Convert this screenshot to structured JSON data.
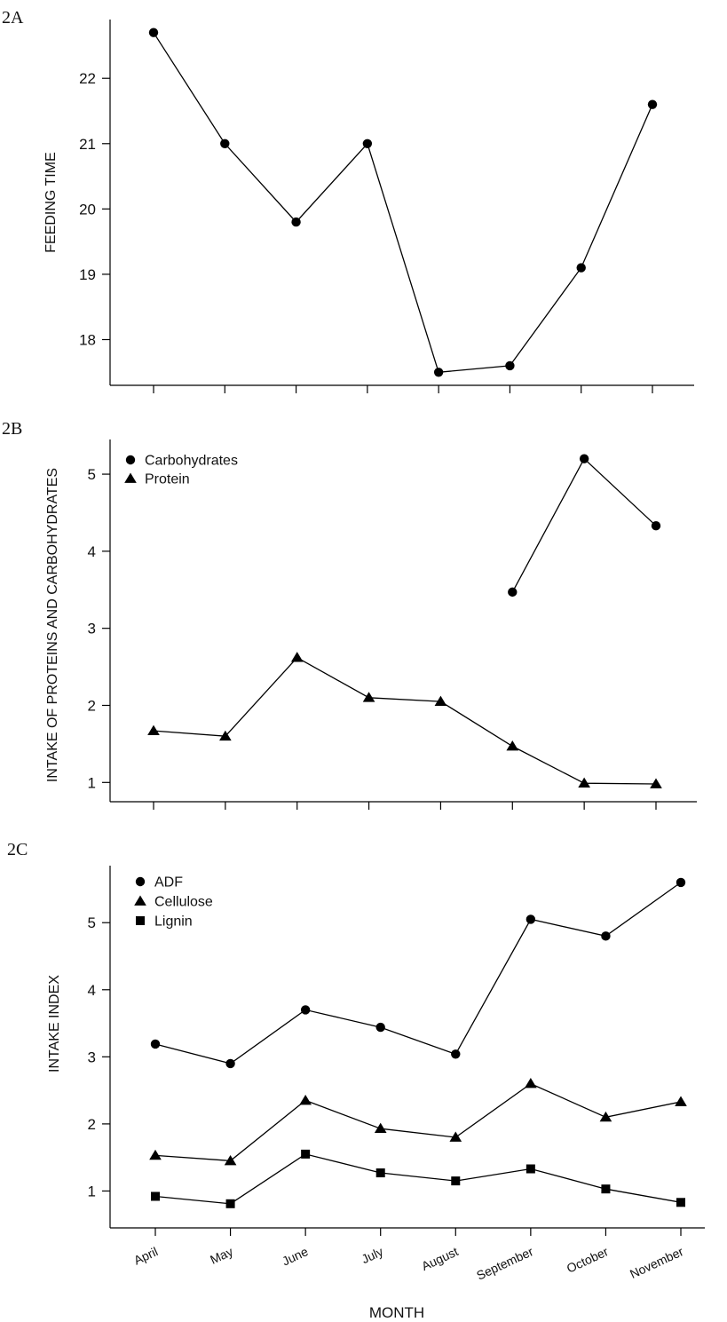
{
  "chart_data": [
    {
      "panel": "2A",
      "type": "line",
      "ylabel": "FEEDING  TIME",
      "ylim": [
        17.3,
        22.9
      ],
      "yticks": [
        18,
        19,
        20,
        21,
        22
      ],
      "categories": [
        "April",
        "May",
        "June",
        "July",
        "August",
        "September",
        "October",
        "November"
      ],
      "series": [
        {
          "name": "Feeding time",
          "marker": "circle",
          "values": [
            22.7,
            21.0,
            19.8,
            21.0,
            17.5,
            17.6,
            19.1,
            21.6
          ]
        }
      ]
    },
    {
      "panel": "2B",
      "type": "line",
      "ylabel": "INTAKE OF PROTEINS AND CARBOHYDRATES",
      "ylim": [
        0.75,
        5.45
      ],
      "yticks": [
        1,
        2,
        3,
        4,
        5
      ],
      "categories": [
        "April",
        "May",
        "June",
        "July",
        "August",
        "September",
        "October",
        "November"
      ],
      "legend": [
        {
          "label": "Carbohydrates",
          "marker": "circle"
        },
        {
          "label": "Protein",
          "marker": "triangle"
        }
      ],
      "series": [
        {
          "name": "Carbohydrates",
          "marker": "circle",
          "values": [
            null,
            null,
            null,
            null,
            null,
            3.47,
            5.2,
            4.33
          ]
        },
        {
          "name": "Protein",
          "marker": "triangle",
          "values": [
            1.67,
            1.6,
            2.62,
            2.1,
            2.05,
            1.47,
            0.99,
            0.98
          ]
        }
      ]
    },
    {
      "panel": "2C",
      "type": "line",
      "ylabel": "INTAKE  INDEX",
      "xlabel": "MONTH",
      "ylim": [
        0.45,
        5.85
      ],
      "yticks": [
        1,
        2,
        3,
        4,
        5
      ],
      "categories": [
        "April",
        "May",
        "June",
        "July",
        "August",
        "September",
        "October",
        "November"
      ],
      "legend": [
        {
          "label": "ADF",
          "marker": "circle"
        },
        {
          "label": "Cellulose",
          "marker": "triangle"
        },
        {
          "label": "Lignin",
          "marker": "square"
        }
      ],
      "series": [
        {
          "name": "ADF",
          "marker": "circle",
          "values": [
            3.19,
            2.9,
            3.7,
            3.44,
            3.04,
            5.05,
            4.8,
            5.6
          ]
        },
        {
          "name": "Cellulose",
          "marker": "triangle",
          "values": [
            1.53,
            1.45,
            2.35,
            1.93,
            1.8,
            2.6,
            2.1,
            2.33
          ]
        },
        {
          "name": "Lignin",
          "marker": "square",
          "values": [
            0.92,
            0.81,
            1.55,
            1.27,
            1.15,
            1.33,
            1.03,
            0.83
          ]
        }
      ]
    }
  ]
}
